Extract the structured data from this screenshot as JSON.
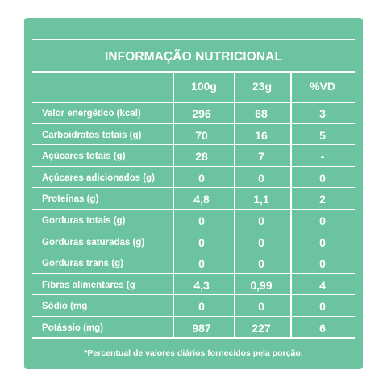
{
  "title": "INFORMAÇÃO NUTRICIONAL",
  "columns": [
    "100g",
    "23g",
    "%VD"
  ],
  "rows": [
    {
      "label": "Valor energético (kcal)",
      "v100": "296",
      "v23": "68",
      "vd": "3"
    },
    {
      "label": "Carboidratos totais (g)",
      "v100": "70",
      "v23": "16",
      "vd": "5"
    },
    {
      "label": "Açúcares totais (g)",
      "v100": "28",
      "v23": "7",
      "vd": "-"
    },
    {
      "label": "Açúcares adicionados (g)",
      "v100": "0",
      "v23": "0",
      "vd": "0"
    },
    {
      "label": "Proteínas (g)",
      "v100": "4,8",
      "v23": "1,1",
      "vd": "2"
    },
    {
      "label": "Gorduras totais (g)",
      "v100": "0",
      "v23": "0",
      "vd": "0"
    },
    {
      "label": "Gorduras saturadas (g)",
      "v100": "0",
      "v23": "0",
      "vd": "0"
    },
    {
      "label": "Gorduras trans (g)",
      "v100": "0",
      "v23": "0",
      "vd": "0"
    },
    {
      "label": "Fibras alimentares (g",
      "v100": "4,3",
      "v23": "0,99",
      "vd": "4"
    },
    {
      "label": "Sódio (mg",
      "v100": "0",
      "v23": "0",
      "vd": "0"
    },
    {
      "label": "Potássio (mg)",
      "v100": "987",
      "v23": "227",
      "vd": "6"
    }
  ],
  "footnote": "*Percentual de valores diários fornecidos pela porção.",
  "colors": {
    "background": "#6cc3a0",
    "text": "#ffffff"
  }
}
